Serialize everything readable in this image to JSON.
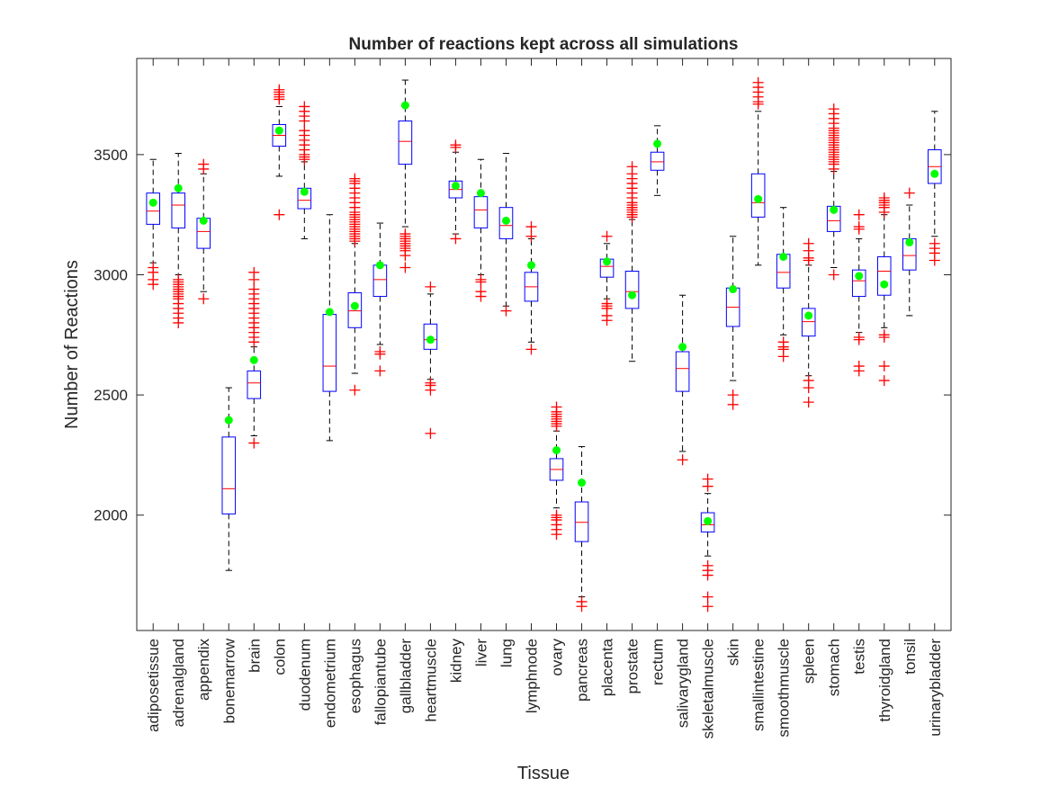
{
  "chart_data": {
    "type": "boxplot",
    "title": "Number of reactions kept across all simulations",
    "xlabel": "Tissue",
    "ylabel": "Number of Reactions",
    "ylim": [
      1520,
      3900
    ],
    "yticks": [
      2000,
      2500,
      3000,
      3500
    ],
    "grid": false,
    "colors": {
      "box": "#0000ff",
      "median": "#ff0000",
      "outlier": "#ff0000",
      "whisker": "#000000",
      "highlight_point": "#00ff00",
      "axes": "#262626"
    },
    "categories": [
      "adiposetissue",
      "adrenalgland",
      "appendix",
      "bonemarrow",
      "brain",
      "colon",
      "duodenum",
      "endometrium",
      "esophagus",
      "fallopiantube",
      "gallbladder",
      "heartmuscle",
      "kidney",
      "liver",
      "lung",
      "lymphnode",
      "ovary",
      "pancreas",
      "placenta",
      "prostate",
      "rectum",
      "salivarygland",
      "skeletalmuscle",
      "skin",
      "smallintestine",
      "smoothmuscle",
      "spleen",
      "stomach",
      "testis",
      "thyroidgland",
      "tonsil",
      "urinarybladder"
    ],
    "boxes": [
      {
        "name": "adiposetissue",
        "q1": 3210,
        "median": 3265,
        "q3": 3340,
        "whisker_low": 3050,
        "whisker_high": 3480,
        "outliers": [
          3030,
          3010,
          2980,
          2960
        ],
        "point": 3300
      },
      {
        "name": "adrenalgland",
        "q1": 3195,
        "median": 3290,
        "q3": 3340,
        "whisker_low": 3000,
        "whisker_high": 3505,
        "outliers": [
          2980,
          2970,
          2960,
          2950,
          2940,
          2930,
          2920,
          2910,
          2900,
          2880,
          2860,
          2840,
          2820,
          2800
        ],
        "point": 3360
      },
      {
        "name": "appendix",
        "q1": 3110,
        "median": 3180,
        "q3": 3235,
        "whisker_low": 2930,
        "whisker_high": 3420,
        "outliers": [
          3460,
          3440,
          2900
        ],
        "point": 3225
      },
      {
        "name": "bonemarrow",
        "q1": 2005,
        "median": 2110,
        "q3": 2325,
        "whisker_low": 1770,
        "whisker_high": 2530,
        "outliers": [],
        "point": 2395
      },
      {
        "name": "brain",
        "q1": 2485,
        "median": 2550,
        "q3": 2600,
        "whisker_low": 2330,
        "whisker_high": 2700,
        "outliers": [
          3010,
          2980,
          2940,
          2920,
          2900,
          2880,
          2860,
          2840,
          2820,
          2800,
          2780,
          2760,
          2740,
          2720,
          2300
        ],
        "point": 2645
      },
      {
        "name": "colon",
        "q1": 3535,
        "median": 3580,
        "q3": 3625,
        "whisker_low": 3410,
        "whisker_high": 3700,
        "outliers": [
          3770,
          3760,
          3750,
          3740,
          3730,
          3250
        ],
        "point": 3600
      },
      {
        "name": "duodenum",
        "q1": 3275,
        "median": 3310,
        "q3": 3360,
        "whisker_low": 3150,
        "whisker_high": 3470,
        "outliers": [
          3700,
          3680,
          3660,
          3640,
          3600,
          3580,
          3560,
          3540,
          3520,
          3500,
          3490,
          3480
        ],
        "point": 3345
      },
      {
        "name": "endometrium",
        "q1": 2515,
        "median": 2620,
        "q3": 2835,
        "whisker_low": 2310,
        "whisker_high": 3250,
        "outliers": [],
        "point": 2845
      },
      {
        "name": "esophagus",
        "q1": 2780,
        "median": 2850,
        "q3": 2925,
        "whisker_low": 2590,
        "whisker_high": 3130,
        "outliers": [
          3400,
          3390,
          3380,
          3360,
          3340,
          3320,
          3300,
          3280,
          3260,
          3250,
          3240,
          3230,
          3220,
          3210,
          3200,
          3190,
          3180,
          3170,
          3160,
          3150,
          3140,
          2520
        ],
        "point": 2870
      },
      {
        "name": "fallopiantube",
        "q1": 2910,
        "median": 2980,
        "q3": 3040,
        "whisker_low": 2710,
        "whisker_high": 3215,
        "outliers": [
          2680,
          2670,
          2600
        ],
        "point": 3040
      },
      {
        "name": "gallbladder",
        "q1": 3460,
        "median": 3555,
        "q3": 3640,
        "whisker_low": 3200,
        "whisker_high": 3810,
        "outliers": [
          3170,
          3160,
          3150,
          3140,
          3130,
          3120,
          3110,
          3100,
          3080,
          3030
        ],
        "point": 3705
      },
      {
        "name": "heartmuscle",
        "q1": 2690,
        "median": 2730,
        "q3": 2795,
        "whisker_low": 2565,
        "whisker_high": 2920,
        "outliers": [
          2950,
          2550,
          2540,
          2520,
          2340
        ],
        "point": 2730
      },
      {
        "name": "kidney",
        "q1": 3320,
        "median": 3355,
        "q3": 3390,
        "whisker_low": 3170,
        "whisker_high": 3510,
        "outliers": [
          3540,
          3530,
          3150
        ],
        "point": 3370
      },
      {
        "name": "liver",
        "q1": 3195,
        "median": 3270,
        "q3": 3325,
        "whisker_low": 3000,
        "whisker_high": 3480,
        "outliers": [
          2980,
          2970,
          2930,
          2910
        ],
        "point": 3340
      },
      {
        "name": "lung",
        "q1": 3150,
        "median": 3205,
        "q3": 3280,
        "whisker_low": 2870,
        "whisker_high": 3505,
        "outliers": [
          2850
        ],
        "point": 3225
      },
      {
        "name": "lymphnode",
        "q1": 2890,
        "median": 2950,
        "q3": 3010,
        "whisker_low": 2720,
        "whisker_high": 3150,
        "outliers": [
          3200,
          3160,
          2690
        ],
        "point": 3040
      },
      {
        "name": "ovary",
        "q1": 2145,
        "median": 2190,
        "q3": 2235,
        "whisker_low": 2030,
        "whisker_high": 2350,
        "outliers": [
          2450,
          2430,
          2420,
          2410,
          2400,
          2390,
          2380,
          2370,
          2000,
          1990,
          1980,
          1960,
          1940,
          1920
        ],
        "point": 2270
      },
      {
        "name": "pancreas",
        "q1": 1890,
        "median": 1970,
        "q3": 2055,
        "whisker_low": 1660,
        "whisker_high": 2285,
        "outliers": [
          1640,
          1620
        ],
        "point": 2135
      },
      {
        "name": "placenta",
        "q1": 2990,
        "median": 3035,
        "q3": 3065,
        "whisker_low": 2900,
        "whisker_high": 3130,
        "outliers": [
          3160,
          2880,
          2870,
          2860,
          2830,
          2810
        ],
        "point": 3055
      },
      {
        "name": "prostate",
        "q1": 2860,
        "median": 2930,
        "q3": 3015,
        "whisker_low": 2640,
        "whisker_high": 3230,
        "outliers": [
          3450,
          3420,
          3400,
          3380,
          3360,
          3340,
          3320,
          3300,
          3290,
          3280,
          3270,
          3260,
          3250,
          3240
        ],
        "point": 2915
      },
      {
        "name": "rectum",
        "q1": 3435,
        "median": 3470,
        "q3": 3510,
        "whisker_low": 3330,
        "whisker_high": 3620,
        "outliers": [],
        "point": 3545
      },
      {
        "name": "salivarygland",
        "q1": 2515,
        "median": 2610,
        "q3": 2680,
        "whisker_low": 2265,
        "whisker_high": 2915,
        "outliers": [
          2230
        ],
        "point": 2700
      },
      {
        "name": "skeletalmuscle",
        "q1": 1930,
        "median": 1960,
        "q3": 2010,
        "whisker_low": 1830,
        "whisker_high": 2090,
        "outliers": [
          2150,
          2120,
          1790,
          1770,
          1750,
          1660,
          1620
        ],
        "point": 1975
      },
      {
        "name": "skin",
        "q1": 2785,
        "median": 2865,
        "q3": 2945,
        "whisker_low": 2560,
        "whisker_high": 3160,
        "outliers": [
          2500,
          2460
        ],
        "point": 2940
      },
      {
        "name": "smallintestine",
        "q1": 3240,
        "median": 3300,
        "q3": 3420,
        "whisker_low": 3040,
        "whisker_high": 3680,
        "outliers": [
          3800,
          3780,
          3760,
          3740,
          3720,
          3710
        ],
        "point": 3315
      },
      {
        "name": "smoothmuscle",
        "q1": 2945,
        "median": 3010,
        "q3": 3085,
        "whisker_low": 2750,
        "whisker_high": 3280,
        "outliers": [
          2720,
          2700,
          2690,
          2660
        ],
        "point": 3075
      },
      {
        "name": "spleen",
        "q1": 2745,
        "median": 2805,
        "q3": 2860,
        "whisker_low": 2580,
        "whisker_high": 3040,
        "outliers": [
          3130,
          3100,
          3070,
          3060,
          2560,
          2530,
          2470
        ],
        "point": 2830
      },
      {
        "name": "stomach",
        "q1": 3180,
        "median": 3225,
        "q3": 3285,
        "whisker_low": 3030,
        "whisker_high": 3430,
        "outliers": [
          3690,
          3670,
          3650,
          3630,
          3610,
          3600,
          3590,
          3580,
          3570,
          3560,
          3550,
          3540,
          3530,
          3520,
          3510,
          3500,
          3490,
          3480,
          3470,
          3460,
          3440,
          3000
        ],
        "point": 3270
      },
      {
        "name": "testis",
        "q1": 2910,
        "median": 2975,
        "q3": 3020,
        "whisker_low": 2760,
        "whisker_high": 3150,
        "outliers": [
          3250,
          3200,
          3190,
          2740,
          2730,
          2620,
          2600
        ],
        "point": 2995
      },
      {
        "name": "thyroidgland",
        "q1": 2915,
        "median": 3015,
        "q3": 3075,
        "whisker_low": 2780,
        "whisker_high": 3250,
        "outliers": [
          3320,
          3310,
          3300,
          3290,
          3280,
          3260,
          2750,
          2740,
          2620,
          2560
        ],
        "point": 2960
      },
      {
        "name": "tonsil",
        "q1": 3020,
        "median": 3080,
        "q3": 3150,
        "whisker_low": 2830,
        "whisker_high": 3290,
        "outliers": [
          3340
        ],
        "point": 3135
      },
      {
        "name": "urinarybladder",
        "q1": 3380,
        "median": 3450,
        "q3": 3520,
        "whisker_low": 3160,
        "whisker_high": 3680,
        "outliers": [
          3130,
          3110,
          3090,
          3060
        ],
        "point": 3420
      }
    ]
  }
}
